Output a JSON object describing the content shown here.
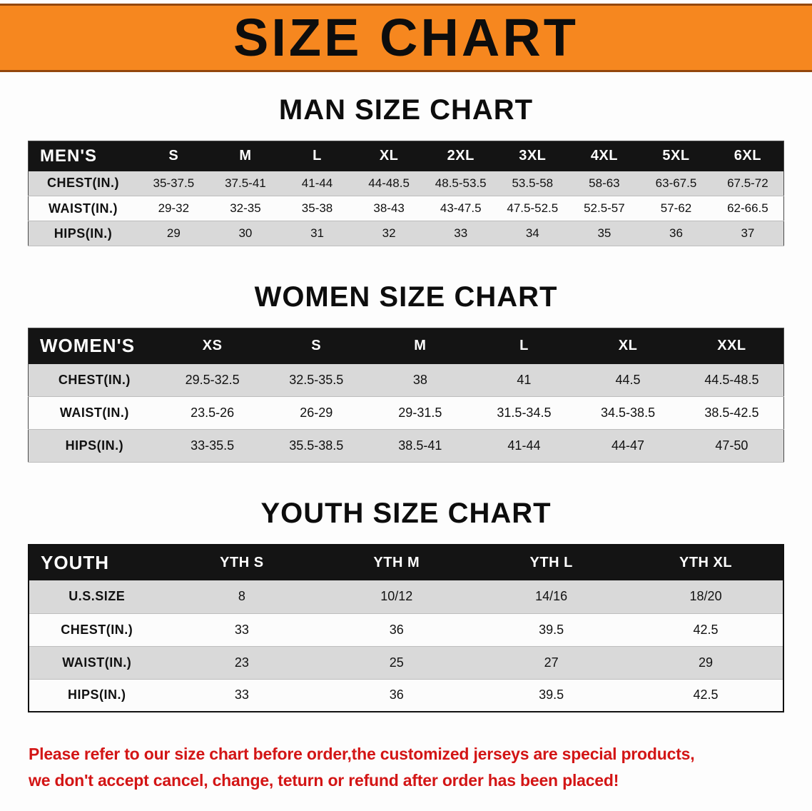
{
  "banner": {
    "title": "SIZE CHART"
  },
  "sections": [
    {
      "id": "men",
      "heading": "MAN SIZE CHART",
      "table": {
        "header": [
          "MEN'S",
          "S",
          "M",
          "L",
          "XL",
          "2XL",
          "3XL",
          "4XL",
          "5XL",
          "6XL"
        ],
        "rows": [
          [
            "CHEST(IN.)",
            "35-37.5",
            "37.5-41",
            "41-44",
            "44-48.5",
            "48.5-53.5",
            "53.5-58",
            "58-63",
            "63-67.5",
            "67.5-72"
          ],
          [
            "WAIST(IN.)",
            "29-32",
            "32-35",
            "35-38",
            "38-43",
            "43-47.5",
            "47.5-52.5",
            "52.5-57",
            "57-62",
            "62-66.5"
          ],
          [
            "HIPS(IN.)",
            "29",
            "30",
            "31",
            "32",
            "33",
            "34",
            "35",
            "36",
            "37"
          ]
        ]
      }
    },
    {
      "id": "women",
      "heading": "WOMEN SIZE CHART",
      "table": {
        "header": [
          "WOMEN'S",
          "XS",
          "S",
          "M",
          "L",
          "XL",
          "XXL"
        ],
        "rows": [
          [
            "CHEST(IN.)",
            "29.5-32.5",
            "32.5-35.5",
            "38",
            "41",
            "44.5",
            "44.5-48.5"
          ],
          [
            "WAIST(IN.)",
            "23.5-26",
            "26-29",
            "29-31.5",
            "31.5-34.5",
            "34.5-38.5",
            "38.5-42.5"
          ],
          [
            "HIPS(IN.)",
            "33-35.5",
            "35.5-38.5",
            "38.5-41",
            "41-44",
            "44-47",
            "47-50"
          ]
        ]
      }
    },
    {
      "id": "youth",
      "heading": "YOUTH SIZE CHART",
      "table": {
        "header": [
          "YOUTH",
          "YTH S",
          "YTH M",
          "YTH L",
          "YTH XL"
        ],
        "rows": [
          [
            "U.S.SIZE",
            "8",
            "10/12",
            "14/16",
            "18/20"
          ],
          [
            "CHEST(IN.)",
            "33",
            "36",
            "39.5",
            "42.5"
          ],
          [
            "WAIST(IN.)",
            "23",
            "25",
            "27",
            "29"
          ],
          [
            "HIPS(IN.)",
            "33",
            "36",
            "39.5",
            "42.5"
          ]
        ]
      }
    }
  ],
  "disclaimer": "Please refer to our size chart before order,the customized jerseys are special products,\nwe don't accept cancel, change, teturn or refund after order has been placed!",
  "colors": {
    "accent_orange": "#f6871f",
    "table_header_black": "#141414",
    "row_gray": "#d9d9d9",
    "disclaimer_red": "#d31515"
  }
}
